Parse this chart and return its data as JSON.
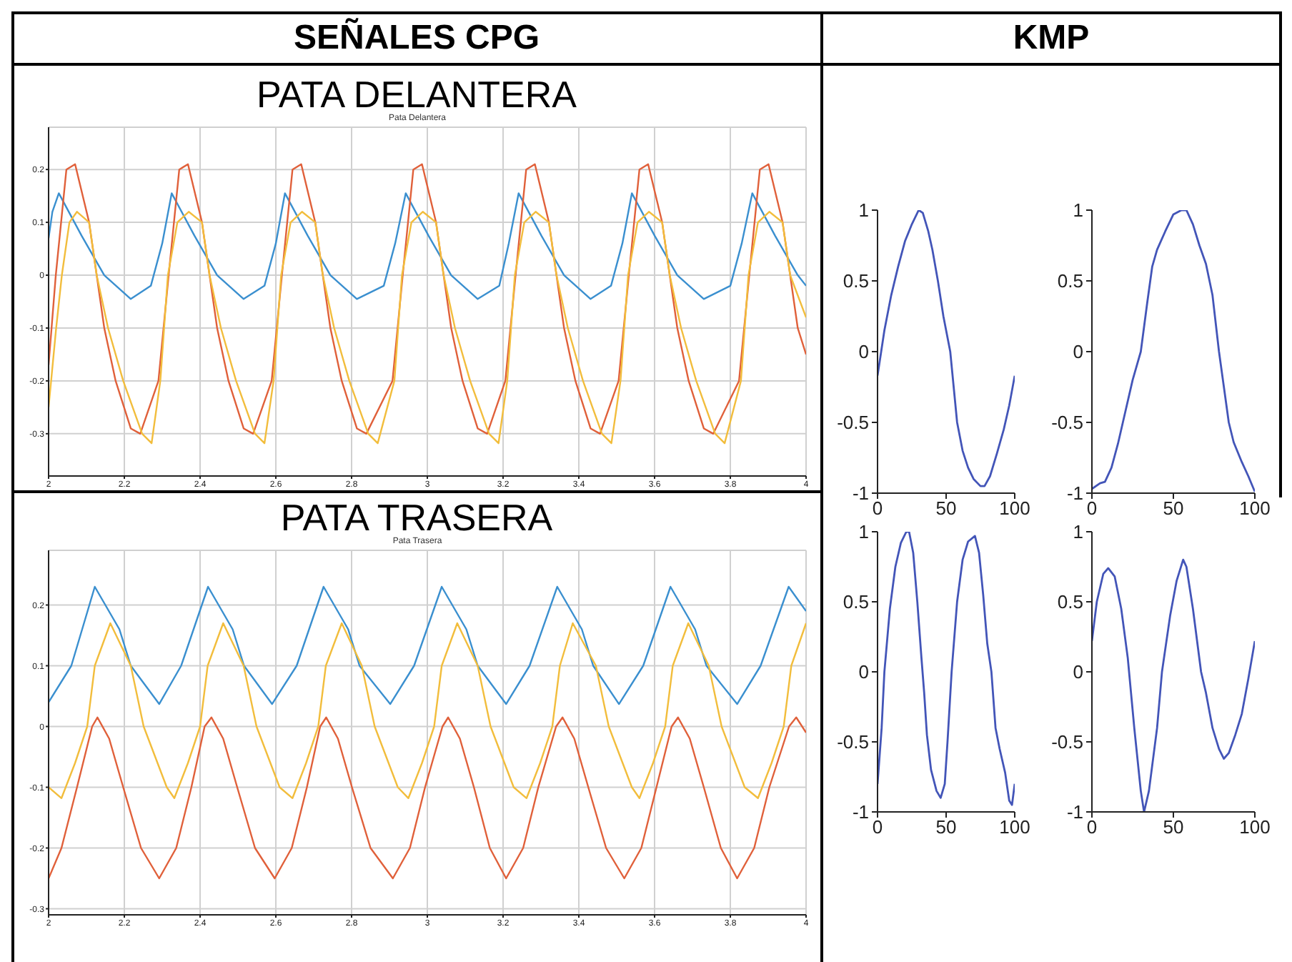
{
  "chart_data": [
    {
      "type": "line",
      "title": "PATA DELANTERA",
      "subtitle": "Pata Delantera",
      "annotations": [
        "SEÑALES CPG"
      ],
      "xlim": [
        2,
        4
      ],
      "ylim": [
        -0.38,
        0.28
      ],
      "xticks": [
        2,
        2.2,
        2.4,
        2.6,
        2.8,
        3,
        3.2,
        3.4,
        3.6,
        3.8,
        4
      ],
      "yticks": [
        -0.3,
        -0.2,
        -0.1,
        0,
        0.1,
        0.2
      ],
      "grid": true,
      "series": [
        {
          "color": "#3a8fcf",
          "x": [
            2.0,
            2.01,
            2.027,
            2.087,
            2.147,
            2.217,
            2.27,
            2.3,
            2.325,
            2.385,
            2.445,
            2.515,
            2.57,
            2.6,
            2.624,
            2.684,
            2.744,
            2.814,
            2.885,
            2.915,
            2.943,
            3.003,
            3.063,
            3.133,
            3.19,
            3.215,
            3.241,
            3.301,
            3.361,
            3.431,
            3.485,
            3.515,
            3.54,
            3.6,
            3.66,
            3.73,
            3.8,
            3.83,
            3.858,
            3.918,
            3.978,
            4.0
          ],
          "values": [
            0.07,
            0.12,
            0.155,
            0.075,
            0,
            -0.045,
            -0.02,
            0.06,
            0.155,
            0.075,
            0,
            -0.045,
            -0.02,
            0.06,
            0.155,
            0.075,
            0,
            -0.045,
            -0.02,
            0.06,
            0.155,
            0.075,
            0,
            -0.045,
            -0.02,
            0.06,
            0.155,
            0.075,
            0,
            -0.045,
            -0.02,
            0.06,
            0.155,
            0.075,
            0,
            -0.045,
            -0.02,
            0.06,
            0.155,
            0.075,
            0,
            -0.02
          ]
        },
        {
          "color": "#e0603a",
          "x": [
            2.0,
            2.019,
            2.047,
            2.07,
            2.107,
            2.127,
            2.147,
            2.177,
            2.217,
            2.242,
            2.29,
            2.317,
            2.345,
            2.368,
            2.405,
            2.425,
            2.445,
            2.475,
            2.515,
            2.54,
            2.589,
            2.616,
            2.644,
            2.667,
            2.704,
            2.724,
            2.744,
            2.774,
            2.814,
            2.839,
            2.908,
            2.935,
            2.963,
            2.986,
            3.023,
            3.043,
            3.063,
            3.093,
            3.133,
            3.158,
            3.206,
            3.233,
            3.261,
            3.284,
            3.321,
            3.341,
            3.361,
            3.391,
            3.431,
            3.456,
            3.505,
            3.532,
            3.56,
            3.583,
            3.62,
            3.64,
            3.66,
            3.69,
            3.73,
            3.755,
            3.823,
            3.85,
            3.878,
            3.901,
            3.938,
            3.958,
            3.978,
            4.0
          ],
          "values": [
            -0.17,
            0,
            0.2,
            0.21,
            0.1,
            0,
            -0.1,
            -0.2,
            -0.29,
            -0.3,
            -0.2,
            0,
            0.2,
            0.21,
            0.1,
            0,
            -0.1,
            -0.2,
            -0.29,
            -0.3,
            -0.2,
            0,
            0.2,
            0.21,
            0.1,
            0,
            -0.1,
            -0.2,
            -0.29,
            -0.3,
            -0.2,
            0,
            0.2,
            0.21,
            0.1,
            0,
            -0.1,
            -0.2,
            -0.29,
            -0.3,
            -0.2,
            0,
            0.2,
            0.21,
            0.1,
            0,
            -0.1,
            -0.2,
            -0.29,
            -0.3,
            -0.2,
            0,
            0.2,
            0.21,
            0.1,
            0,
            -0.1,
            -0.2,
            -0.29,
            -0.3,
            -0.2,
            0,
            0.2,
            0.21,
            0.1,
            0,
            -0.1,
            -0.15
          ]
        },
        {
          "color": "#f2bd3c",
          "x": [
            2.0,
            2.02,
            2.035,
            2.055,
            2.075,
            2.107,
            2.127,
            2.157,
            2.197,
            2.247,
            2.272,
            2.295,
            2.315,
            2.34,
            2.37,
            2.405,
            2.425,
            2.455,
            2.495,
            2.545,
            2.57,
            2.594,
            2.614,
            2.639,
            2.669,
            2.704,
            2.724,
            2.754,
            2.794,
            2.844,
            2.869,
            2.913,
            2.933,
            2.958,
            2.988,
            3.023,
            3.043,
            3.073,
            3.113,
            3.163,
            3.188,
            3.211,
            3.231,
            3.256,
            3.286,
            3.321,
            3.341,
            3.371,
            3.411,
            3.461,
            3.486,
            3.51,
            3.53,
            3.555,
            3.585,
            3.62,
            3.64,
            3.67,
            3.71,
            3.76,
            3.785,
            3.828,
            3.848,
            3.873,
            3.903,
            3.938,
            3.958,
            4.0
          ],
          "values": [
            -0.25,
            -0.1,
            0,
            0.1,
            0.12,
            0.1,
            0,
            -0.1,
            -0.2,
            -0.3,
            -0.318,
            -0.2,
            0,
            0.1,
            0.12,
            0.1,
            0,
            -0.1,
            -0.2,
            -0.3,
            -0.318,
            -0.2,
            0,
            0.1,
            0.12,
            0.1,
            0,
            -0.1,
            -0.2,
            -0.3,
            -0.318,
            -0.2,
            0,
            0.1,
            0.12,
            0.1,
            0,
            -0.1,
            -0.2,
            -0.3,
            -0.318,
            -0.2,
            0,
            0.1,
            0.12,
            0.1,
            0,
            -0.1,
            -0.2,
            -0.3,
            -0.318,
            -0.2,
            0,
            0.1,
            0.12,
            0.1,
            0,
            -0.1,
            -0.2,
            -0.3,
            -0.318,
            -0.2,
            0,
            0.1,
            0.12,
            0.1,
            0,
            -0.08
          ]
        }
      ]
    },
    {
      "type": "line",
      "title": "PATA TRASERA",
      "subtitle": "Pata Trasera",
      "xlim": [
        2,
        4
      ],
      "ylim": [
        -0.31,
        0.29
      ],
      "xticks": [
        2,
        2.2,
        2.4,
        2.6,
        2.8,
        3,
        3.2,
        3.4,
        3.6,
        3.8,
        4
      ],
      "yticks": [
        -0.3,
        -0.2,
        -0.1,
        0,
        0.1,
        0.2
      ],
      "grid": true,
      "series": [
        {
          "color": "#3a8fcf",
          "x": [
            2.0,
            2.06,
            2.122,
            2.187,
            2.217,
            2.292,
            2.35,
            2.421,
            2.486,
            2.516,
            2.59,
            2.655,
            2.726,
            2.791,
            2.821,
            2.902,
            2.965,
            3.038,
            3.103,
            3.133,
            3.208,
            3.27,
            3.343,
            3.408,
            3.438,
            3.506,
            3.57,
            3.642,
            3.707,
            3.737,
            3.818,
            3.88,
            3.954,
            4.0
          ],
          "values": [
            0.04,
            0.1,
            0.23,
            0.16,
            0.1,
            0.037,
            0.1,
            0.23,
            0.16,
            0.1,
            0.037,
            0.1,
            0.23,
            0.16,
            0.1,
            0.037,
            0.1,
            0.23,
            0.16,
            0.1,
            0.037,
            0.1,
            0.23,
            0.16,
            0.1,
            0.037,
            0.1,
            0.23,
            0.16,
            0.1,
            0.037,
            0.1,
            0.23,
            0.19
          ]
        },
        {
          "color": "#e0603a",
          "x": [
            2.0,
            2.034,
            2.075,
            2.115,
            2.129,
            2.16,
            2.197,
            2.244,
            2.292,
            2.337,
            2.377,
            2.412,
            2.43,
            2.461,
            2.498,
            2.545,
            2.597,
            2.642,
            2.682,
            2.717,
            2.733,
            2.764,
            2.801,
            2.85,
            2.909,
            2.954,
            2.994,
            3.04,
            3.055,
            3.086,
            3.123,
            3.165,
            3.208,
            3.253,
            3.293,
            3.34,
            3.357,
            3.388,
            3.425,
            3.472,
            3.52,
            3.565,
            3.605,
            3.645,
            3.662,
            3.693,
            3.73,
            3.775,
            3.818,
            3.863,
            3.903,
            3.955,
            3.974,
            4.0
          ],
          "values": [
            -0.25,
            -0.2,
            -0.1,
            0,
            0.015,
            -0.02,
            -0.1,
            -0.2,
            -0.25,
            -0.2,
            -0.1,
            0,
            0.015,
            -0.02,
            -0.1,
            -0.2,
            -0.25,
            -0.2,
            -0.1,
            0,
            0.015,
            -0.02,
            -0.1,
            -0.2,
            -0.25,
            -0.2,
            -0.1,
            0,
            0.015,
            -0.02,
            -0.1,
            -0.2,
            -0.25,
            -0.2,
            -0.1,
            0,
            0.015,
            -0.02,
            -0.1,
            -0.2,
            -0.25,
            -0.2,
            -0.1,
            0,
            0.015,
            -0.02,
            -0.1,
            -0.2,
            -0.25,
            -0.2,
            -0.1,
            0,
            0.015,
            -0.01
          ]
        },
        {
          "color": "#f2bd3c",
          "x": [
            2.0,
            2.034,
            2.07,
            2.102,
            2.122,
            2.163,
            2.217,
            2.251,
            2.312,
            2.332,
            2.368,
            2.4,
            2.42,
            2.461,
            2.515,
            2.549,
            2.61,
            2.644,
            2.68,
            2.712,
            2.732,
            2.774,
            2.827,
            2.861,
            2.922,
            2.95,
            2.986,
            3.018,
            3.038,
            3.079,
            3.133,
            3.167,
            3.228,
            3.262,
            3.298,
            3.33,
            3.35,
            3.384,
            3.445,
            3.479,
            3.54,
            3.56,
            3.596,
            3.628,
            3.648,
            3.689,
            3.743,
            3.777,
            3.838,
            3.873,
            3.909,
            3.941,
            3.961,
            4.0
          ],
          "values": [
            -0.1,
            -0.118,
            -0.06,
            0,
            0.1,
            0.17,
            0.1,
            0,
            -0.1,
            -0.118,
            -0.06,
            0,
            0.1,
            0.17,
            0.1,
            0,
            -0.1,
            -0.118,
            -0.06,
            0,
            0.1,
            0.17,
            0.1,
            0,
            -0.1,
            -0.118,
            -0.06,
            0,
            0.1,
            0.17,
            0.1,
            0,
            -0.1,
            -0.118,
            -0.06,
            0,
            0.1,
            0.17,
            0.1,
            0,
            -0.1,
            -0.118,
            -0.06,
            0,
            0.1,
            0.17,
            0.1,
            0,
            -0.1,
            -0.118,
            -0.06,
            0,
            0.1,
            0.17
          ]
        }
      ]
    },
    {
      "type": "line",
      "annotations": [
        "KMP"
      ],
      "xlim": [
        0,
        100
      ],
      "ylim": [
        -1,
        1
      ],
      "xticks": [
        0,
        50,
        100
      ],
      "yticks": [
        -1,
        -0.5,
        0,
        0.5,
        1
      ],
      "series": [
        {
          "color": "#4355b8",
          "x": [
            0,
            5,
            10,
            15,
            20,
            25,
            30,
            33,
            37,
            40,
            44,
            48,
            53,
            58,
            62,
            66,
            70,
            75,
            78,
            82,
            87,
            92,
            96,
            100
          ],
          "values": [
            -0.17,
            0.15,
            0.4,
            0.6,
            0.78,
            0.9,
            1.0,
            0.98,
            0.85,
            0.72,
            0.5,
            0.25,
            0,
            -0.5,
            -0.7,
            -0.82,
            -0.9,
            -0.95,
            -0.95,
            -0.88,
            -0.72,
            -0.55,
            -0.38,
            -0.17
          ]
        }
      ]
    },
    {
      "type": "line",
      "xlim": [
        0,
        100
      ],
      "ylim": [
        -1,
        1
      ],
      "xticks": [
        0,
        50,
        100
      ],
      "yticks": [
        -1,
        -0.5,
        0,
        0.5,
        1
      ],
      "series": [
        {
          "color": "#4355b8",
          "x": [
            0,
            5,
            8,
            12,
            16,
            19,
            25,
            30,
            34,
            37,
            40,
            45,
            50,
            55,
            58,
            62,
            66,
            70,
            74,
            78,
            81,
            84,
            87,
            92,
            96,
            100
          ],
          "values": [
            -0.97,
            -0.93,
            -0.92,
            -0.82,
            -0.65,
            -0.5,
            -0.2,
            0,
            0.35,
            0.6,
            0.72,
            0.85,
            0.97,
            1.0,
            1.0,
            0.9,
            0.75,
            0.62,
            0.4,
            0,
            -0.25,
            -0.5,
            -0.64,
            -0.78,
            -0.88,
            -0.99
          ]
        }
      ]
    },
    {
      "type": "line",
      "xlim": [
        0,
        100
      ],
      "ylim": [
        -1,
        1
      ],
      "xticks": [
        0,
        50,
        100
      ],
      "yticks": [
        -1,
        -0.5,
        0,
        0.5,
        1
      ],
      "series": [
        {
          "color": "#4355b8",
          "x": [
            0,
            3,
            5,
            9,
            13,
            17,
            21,
            23,
            26,
            29,
            32,
            34,
            36,
            39,
            43,
            46,
            49,
            51,
            54,
            58,
            62,
            66,
            71,
            74,
            77,
            80,
            83,
            86,
            89,
            93,
            96,
            98,
            100
          ],
          "values": [
            -0.8,
            -0.4,
            0,
            0.45,
            0.75,
            0.92,
            1.0,
            1.0,
            0.85,
            0.5,
            0.1,
            -0.15,
            -0.45,
            -0.7,
            -0.85,
            -0.9,
            -0.8,
            -0.5,
            0,
            0.5,
            0.8,
            0.93,
            0.97,
            0.85,
            0.55,
            0.2,
            0,
            -0.4,
            -0.55,
            -0.72,
            -0.92,
            -0.95,
            -0.8
          ]
        }
      ]
    },
    {
      "type": "line",
      "xlim": [
        0,
        100
      ],
      "ylim": [
        -1,
        1
      ],
      "xticks": [
        0,
        50,
        100
      ],
      "yticks": [
        -1,
        -0.5,
        0,
        0.5,
        1
      ],
      "series": [
        {
          "color": "#4355b8",
          "x": [
            0,
            3,
            7,
            10,
            14,
            18,
            22,
            26,
            30,
            32,
            35,
            40,
            43,
            48,
            52,
            56,
            58,
            62,
            67,
            70,
            74,
            78,
            81,
            84,
            88,
            92,
            96,
            100
          ],
          "values": [
            0.22,
            0.5,
            0.7,
            0.74,
            0.68,
            0.45,
            0.1,
            -0.4,
            -0.85,
            -1.0,
            -0.85,
            -0.4,
            0,
            0.4,
            0.65,
            0.8,
            0.75,
            0.45,
            0,
            -0.15,
            -0.4,
            -0.55,
            -0.62,
            -0.58,
            -0.45,
            -0.3,
            -0.05,
            0.22
          ]
        }
      ]
    }
  ]
}
